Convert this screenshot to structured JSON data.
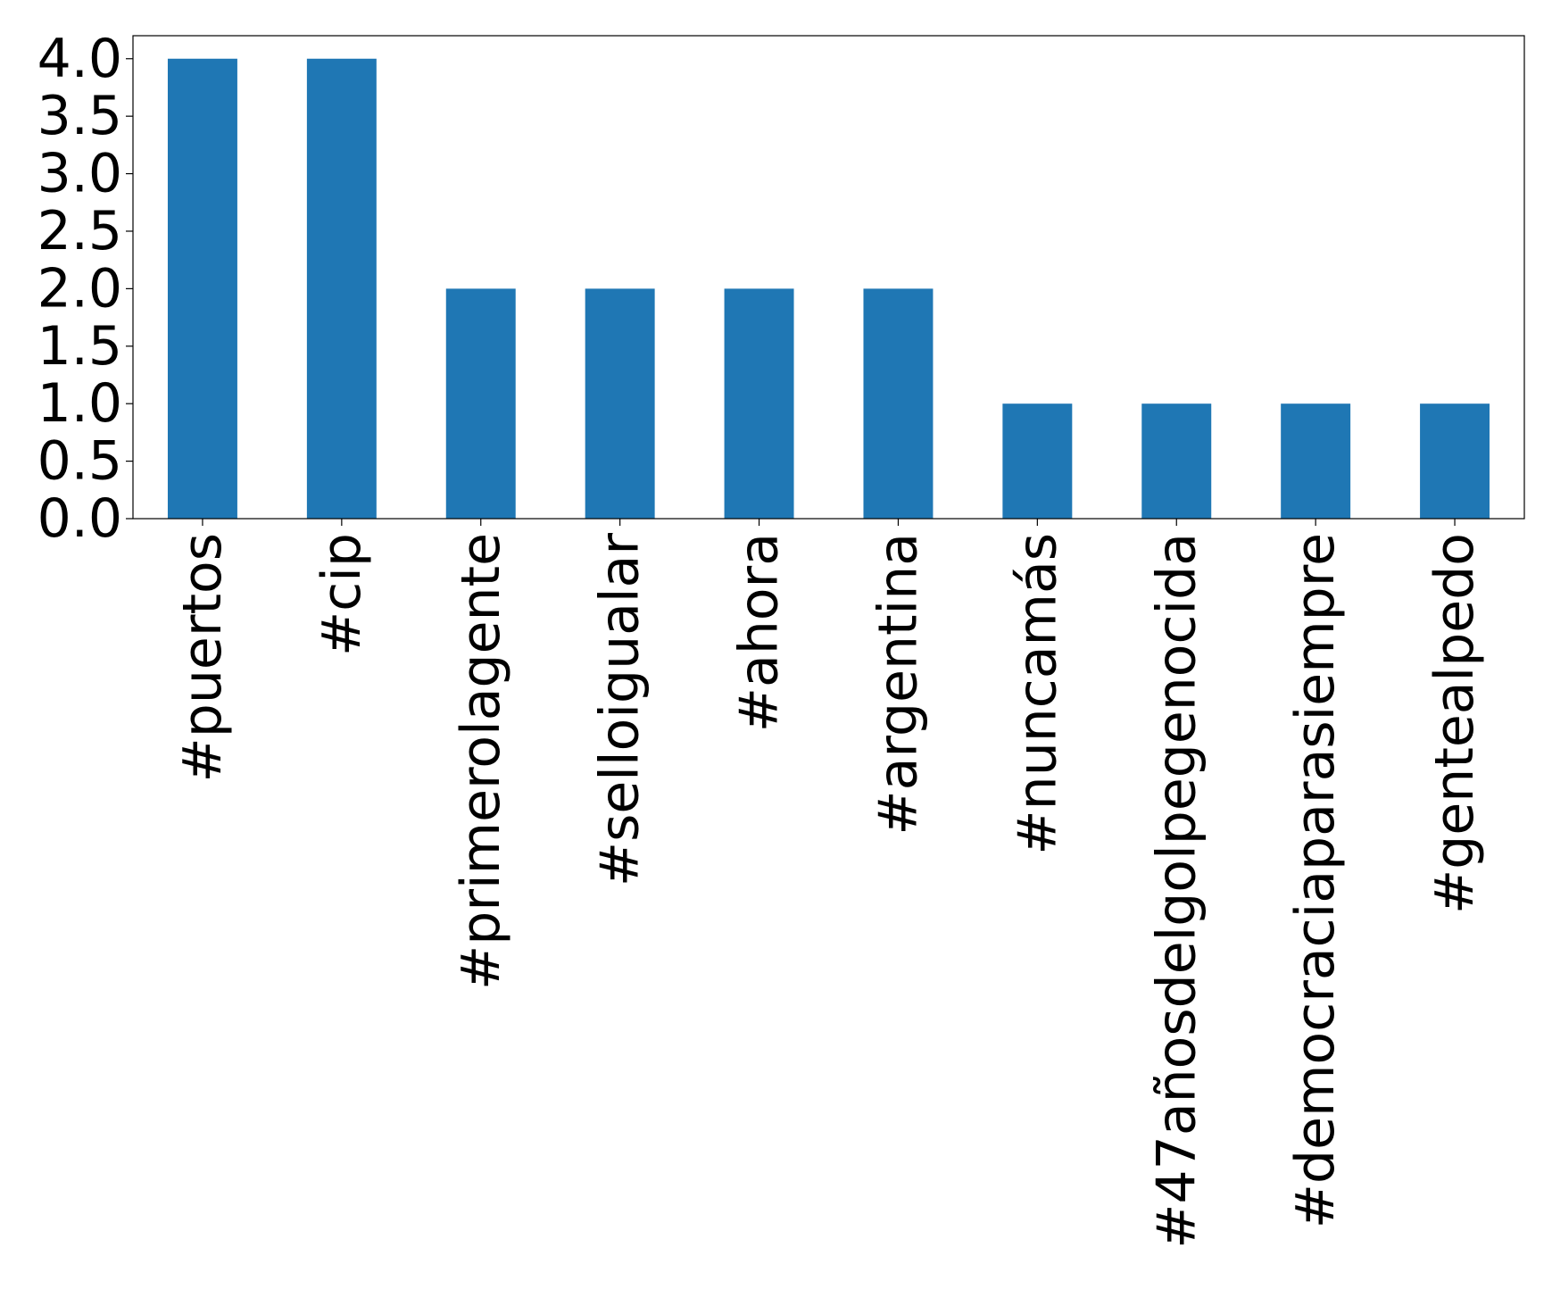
{
  "chart_data": {
    "type": "bar",
    "categories": [
      "#puertos",
      "#cip",
      "#primerolagente",
      "#selloigualar",
      "#ahora",
      "#argentina",
      "#nuncamás",
      "#47añosdelgolpegenocida",
      "#democraciaparasiempre",
      "#gentealpedo"
    ],
    "values": [
      4,
      4,
      2,
      2,
      2,
      2,
      1,
      1,
      1,
      1
    ],
    "color": "#1f77b4",
    "ylim": [
      0,
      4.2
    ],
    "yticks": [
      {
        "value": 0,
        "label": "0.0"
      },
      {
        "value": 0.5,
        "label": "0.5"
      },
      {
        "value": 1,
        "label": "1.0"
      },
      {
        "value": 1.5,
        "label": "1.5"
      },
      {
        "value": 2,
        "label": "2.0"
      },
      {
        "value": 2.5,
        "label": "2.5"
      },
      {
        "value": 3,
        "label": "3.0"
      },
      {
        "value": 3.5,
        "label": "3.5"
      },
      {
        "value": 4,
        "label": "4.0"
      }
    ],
    "grid": false
  }
}
